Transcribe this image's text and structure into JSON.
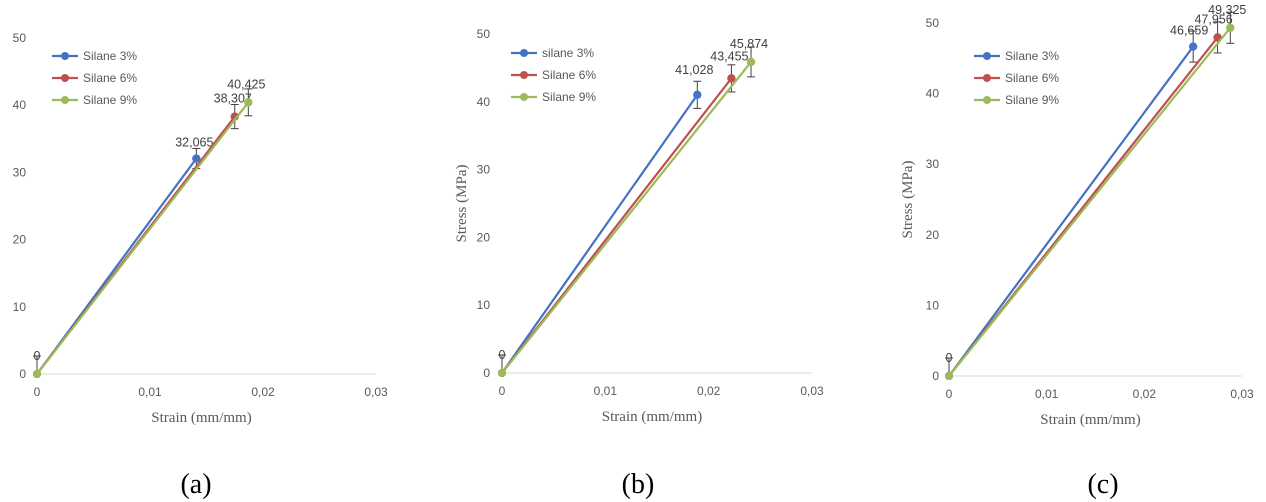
{
  "chart_data": [
    {
      "type": "line",
      "caption": "(a)",
      "xlabel": "Strain (mm/mm)",
      "ylabel": "",
      "xlim": [
        0,
        0.03
      ],
      "ylim": [
        0,
        50
      ],
      "xticks": [
        "0",
        "0,01",
        "0,02",
        "0,03"
      ],
      "yticks": [
        "0",
        "10",
        "20",
        "30",
        "40",
        "50"
      ],
      "legend_position": "top-left",
      "series": [
        {
          "name": "Silane 3%",
          "color": "#4472C4",
          "x": [
            0,
            0.0141
          ],
          "y": [
            0,
            32.065
          ],
          "error": 1.5,
          "end_label": "32,065"
        },
        {
          "name": "Silane 6%",
          "color": "#C0504D",
          "x": [
            0,
            0.0175
          ],
          "y": [
            0,
            38.307
          ],
          "error": 1.8,
          "end_label": "38,307"
        },
        {
          "name": "Silane 9%",
          "color": "#9BBB59",
          "x": [
            0,
            0.0187
          ],
          "y": [
            0,
            40.425
          ],
          "error": 2.0,
          "end_label": "40,425"
        }
      ],
      "origin_label": "0"
    },
    {
      "type": "line",
      "caption": "(b)",
      "xlabel": "Strain (mm/mm)",
      "ylabel": "Stress (MPa)",
      "xlim": [
        0,
        0.03
      ],
      "ylim": [
        0,
        50
      ],
      "xticks": [
        "0",
        "0,01",
        "0,02",
        "0,03"
      ],
      "yticks": [
        "0",
        "10",
        "20",
        "30",
        "40",
        "50"
      ],
      "legend_position": "top-left",
      "series": [
        {
          "name": "silane 3%",
          "color": "#4472C4",
          "x": [
            0,
            0.0189
          ],
          "y": [
            0,
            41.028
          ],
          "error": 2.0,
          "end_label": "41,028"
        },
        {
          "name": "Silane 6%",
          "color": "#C0504D",
          "x": [
            0,
            0.0222
          ],
          "y": [
            0,
            43.455
          ],
          "error": 2.0,
          "end_label": "43,455"
        },
        {
          "name": "Silane 9%",
          "color": "#9BBB59",
          "x": [
            0,
            0.0241
          ],
          "y": [
            0,
            45.874
          ],
          "error": 2.2,
          "end_label": "45,874"
        }
      ],
      "origin_label": "0"
    },
    {
      "type": "line",
      "caption": "(c)",
      "xlabel": "Strain (mm/mm)",
      "ylabel": "Stress (MPa)",
      "xlim": [
        0,
        0.03
      ],
      "ylim": [
        0,
        50
      ],
      "xticks": [
        "0",
        "0,01",
        "0,02",
        "0,03"
      ],
      "yticks": [
        "0",
        "10",
        "20",
        "30",
        "40",
        "50"
      ],
      "legend_position": "top-left",
      "series": [
        {
          "name": "Silane 3%",
          "color": "#4472C4",
          "x": [
            0,
            0.025
          ],
          "y": [
            0,
            46.659
          ],
          "error": 2.2,
          "end_label": "46,659"
        },
        {
          "name": "Silane 6%",
          "color": "#C0504D",
          "x": [
            0,
            0.0275
          ],
          "y": [
            0,
            47.956
          ],
          "error": 2.2,
          "end_label": "47,956"
        },
        {
          "name": "Silane 9%",
          "color": "#9BBB59",
          "x": [
            0,
            0.0288
          ],
          "y": [
            0,
            49.325
          ],
          "error": 2.2,
          "end_label": "49,325"
        }
      ],
      "origin_label": "0"
    }
  ]
}
